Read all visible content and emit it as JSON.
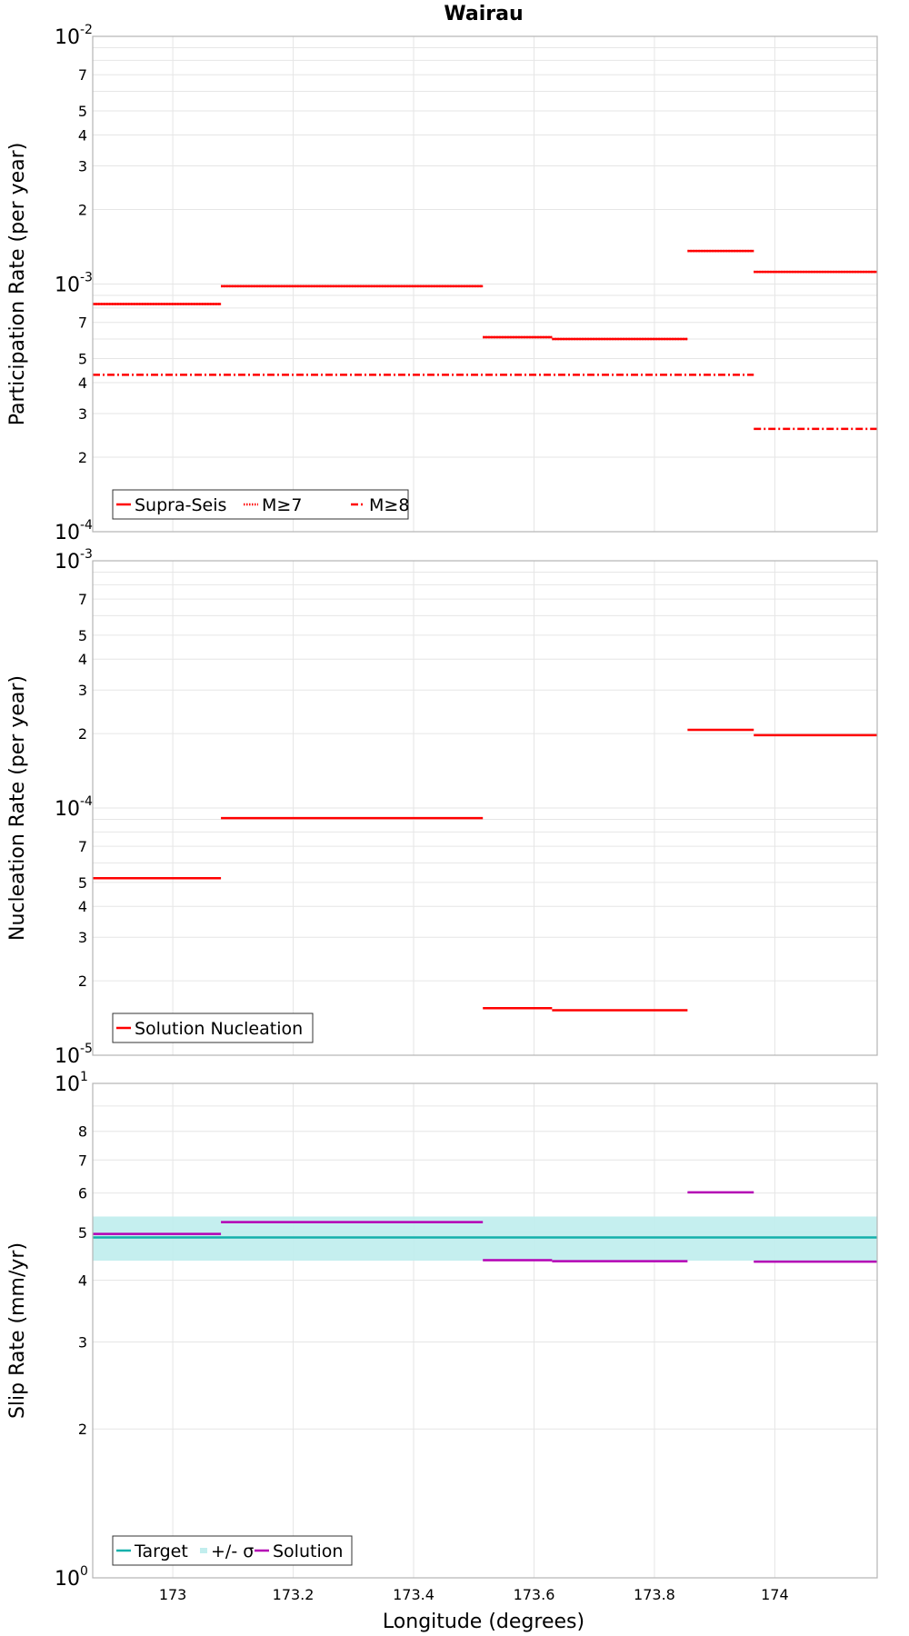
{
  "title": "Wairau",
  "xlabel": "Longitude (degrees)",
  "x_ticks": [
    "173",
    "173.2",
    "173.4",
    "173.6",
    "173.8",
    "174"
  ],
  "colors": {
    "red": "#ff0000",
    "teal": "#14b0ab",
    "band": "#c2eeee",
    "purple": "#b400b4",
    "grid": "#e6e6e6",
    "frame": "#b4b4b4"
  },
  "chart_data": [
    {
      "type": "line",
      "name": "participation",
      "ylabel": "Participation Rate (per year)",
      "yscale": "log",
      "xlim": [
        172.867,
        174.17
      ],
      "ylim": [
        0.0001,
        0.01
      ],
      "x_ticks": [
        173,
        173.2,
        173.4,
        173.6,
        173.8,
        174
      ],
      "y_minor_tick_labels": [
        "2",
        "3",
        "4",
        "5",
        "7"
      ],
      "y_decade_labels": [
        {
          "base": "10",
          "exp": "-2"
        },
        {
          "base": "10",
          "exp": "-3"
        },
        {
          "base": "10",
          "exp": "-4"
        }
      ],
      "grid": true,
      "legend": {
        "position": "bottom-left",
        "entries": [
          "Supra-Seis",
          "M≥7",
          "M≥8"
        ]
      },
      "series": [
        {
          "name": "Supra-Seis",
          "style": "solid",
          "color": "#ff0000",
          "segments": [
            {
              "x": [
                172.867,
                173.08
              ],
              "y": 0.00083
            },
            {
              "x": [
                173.08,
                173.515
              ],
              "y": 0.00098
            },
            {
              "x": [
                173.515,
                173.63
              ],
              "y": 0.00061
            },
            {
              "x": [
                173.63,
                173.855
              ],
              "y": 0.0006
            },
            {
              "x": [
                173.855,
                173.965
              ],
              "y": 0.00136
            },
            {
              "x": [
                173.965,
                174.17
              ],
              "y": 0.00112
            }
          ]
        },
        {
          "name": "M≥7",
          "style": "dotted",
          "color": "#ff0000",
          "segments": [
            {
              "x": [
                172.867,
                173.08
              ],
              "y": 0.00083
            },
            {
              "x": [
                173.08,
                173.515
              ],
              "y": 0.00098
            },
            {
              "x": [
                173.515,
                173.63
              ],
              "y": 0.00061
            },
            {
              "x": [
                173.63,
                173.855
              ],
              "y": 0.0006
            },
            {
              "x": [
                173.855,
                173.965
              ],
              "y": 0.00136
            },
            {
              "x": [
                173.965,
                174.17
              ],
              "y": 0.00112
            }
          ]
        },
        {
          "name": "M≥8",
          "style": "dashdot",
          "color": "#ff0000",
          "segments": [
            {
              "x": [
                172.867,
                173.965
              ],
              "y": 0.00043
            },
            {
              "x": [
                173.965,
                174.17
              ],
              "y": 0.00026
            }
          ]
        }
      ]
    },
    {
      "type": "line",
      "name": "nucleation",
      "ylabel": "Nucleation Rate (per year)",
      "yscale": "log",
      "xlim": [
        172.867,
        174.17
      ],
      "ylim": [
        1e-05,
        0.001
      ],
      "x_ticks": [
        173,
        173.2,
        173.4,
        173.6,
        173.8,
        174
      ],
      "y_minor_tick_labels": [
        "2",
        "3",
        "4",
        "5",
        "7"
      ],
      "y_decade_labels": [
        {
          "base": "10",
          "exp": "-3"
        },
        {
          "base": "10",
          "exp": "-4"
        },
        {
          "base": "10",
          "exp": "-5"
        }
      ],
      "grid": true,
      "legend": {
        "position": "bottom-left",
        "entries": [
          "Solution Nucleation"
        ]
      },
      "series": [
        {
          "name": "Solution Nucleation",
          "style": "solid",
          "color": "#ff0000",
          "segments": [
            {
              "x": [
                172.867,
                173.08
              ],
              "y": 5.2e-05
            },
            {
              "x": [
                173.08,
                173.515
              ],
              "y": 9.1e-05
            },
            {
              "x": [
                173.515,
                173.63
              ],
              "y": 1.55e-05
            },
            {
              "x": [
                173.63,
                173.855
              ],
              "y": 1.52e-05
            },
            {
              "x": [
                173.855,
                173.965
              ],
              "y": 0.000207
            },
            {
              "x": [
                173.965,
                174.17
              ],
              "y": 0.000197
            }
          ]
        }
      ]
    },
    {
      "type": "line",
      "name": "slip",
      "ylabel": "Slip Rate (mm/yr)",
      "yscale": "log",
      "xlim": [
        172.867,
        174.17
      ],
      "ylim": [
        1,
        10
      ],
      "x_ticks": [
        173,
        173.2,
        173.4,
        173.6,
        173.8,
        174
      ],
      "y_minor_tick_labels": [
        "2",
        "3",
        "4",
        "5",
        "6",
        "7",
        "8"
      ],
      "y_decade_labels": [
        {
          "base": "10",
          "exp": "1"
        },
        {
          "base": "10",
          "exp": "0"
        }
      ],
      "grid": true,
      "legend": {
        "position": "bottom-left",
        "entries": [
          "Target",
          "+/- σ",
          "Solution"
        ]
      },
      "band": {
        "name": "+/- σ",
        "color": "#c2eeee",
        "lower": 4.38,
        "upper": 5.38
      },
      "series": [
        {
          "name": "Target",
          "style": "solid",
          "color": "#14b0ab",
          "segments": [
            {
              "x": [
                172.867,
                174.17
              ],
              "y": 4.88
            }
          ]
        },
        {
          "name": "Solution",
          "style": "solid",
          "color": "#b400b4",
          "segments": [
            {
              "x": [
                172.867,
                173.08
              ],
              "y": 4.96
            },
            {
              "x": [
                173.08,
                173.515
              ],
              "y": 5.24
            },
            {
              "x": [
                173.515,
                173.63
              ],
              "y": 4.39
            },
            {
              "x": [
                173.63,
                173.855
              ],
              "y": 4.37
            },
            {
              "x": [
                173.855,
                173.965
              ],
              "y": 6.02
            },
            {
              "x": [
                173.965,
                174.17
              ],
              "y": 4.36
            }
          ]
        }
      ]
    }
  ]
}
